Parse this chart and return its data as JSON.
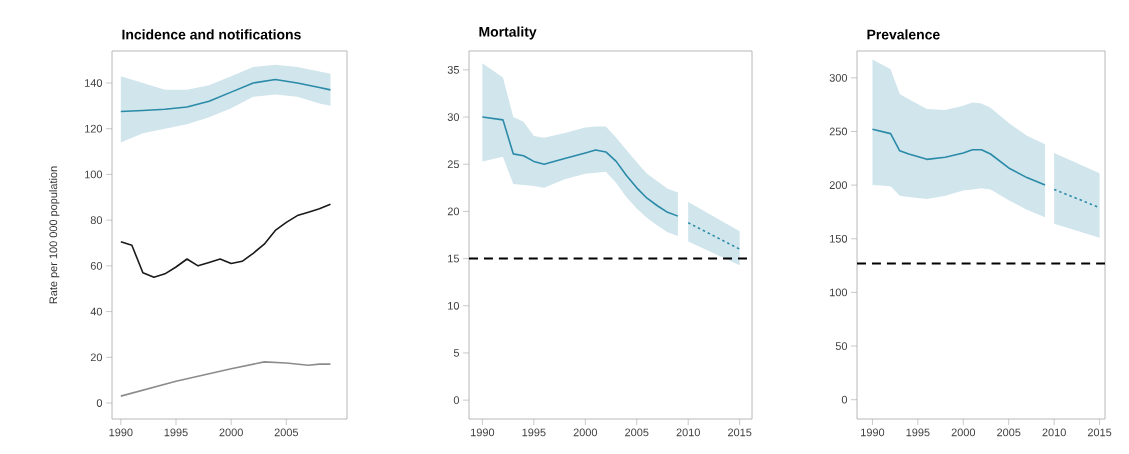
{
  "chart_data": [
    {
      "type": "line",
      "title": "Incidence and notifications",
      "ylabel": "Rate per 100 000 population",
      "xlim": [
        1989.2,
        2010.5
      ],
      "ylim": [
        -7,
        154
      ],
      "xticks": [
        1990,
        1995,
        2000,
        2005
      ],
      "yticks": [
        0,
        20,
        40,
        60,
        80,
        100,
        120,
        140
      ],
      "marker": "none",
      "series": [
        {
          "color": "#2a8aa8",
          "x": [
            1990,
            1992,
            1994,
            1996,
            1998,
            2000,
            2002,
            2004,
            2006,
            2008,
            2009
          ],
          "values": [
            127.5,
            128,
            128.5,
            129.5,
            132,
            136,
            140,
            141.5,
            140,
            138,
            137
          ],
          "lower": [
            114,
            118,
            120,
            122,
            125,
            129,
            134,
            135,
            134,
            131,
            130
          ],
          "upper": [
            143,
            140,
            137,
            137,
            139,
            143,
            147,
            148,
            147,
            145,
            144
          ]
        },
        {
          "color": "#1a1a1a",
          "x": [
            1990,
            1991,
            1992,
            1993,
            1994,
            1995,
            1996,
            1997,
            1998,
            1999,
            2000,
            2001,
            2002,
            2003,
            2004,
            2005,
            2006,
            2007,
            2008,
            2009
          ],
          "values": [
            70.5,
            69,
            57,
            55,
            56.5,
            59.5,
            63,
            60,
            61.5,
            63,
            61,
            62,
            65.5,
            69.5,
            75.5,
            79,
            82,
            83.5,
            85,
            87
          ]
        },
        {
          "color": "#8c8c8c",
          "x": [
            1990,
            1995,
            2000,
            2003,
            2005,
            2007,
            2008,
            2009
          ],
          "values": [
            3,
            9.5,
            15,
            18,
            17.5,
            16.5,
            17,
            17
          ]
        }
      ]
    },
    {
      "type": "line",
      "title": "Mortality",
      "xlim": [
        1988.7,
        2016.2
      ],
      "ylim": [
        -2,
        37
      ],
      "xticks": [
        1990,
        1995,
        2000,
        2005,
        2010,
        2015
      ],
      "yticks": [
        0,
        5,
        10,
        15,
        20,
        25,
        30,
        35
      ],
      "marker": "none",
      "series": [
        {
          "color": "#2a8aa8",
          "x": [
            1990,
            1992,
            1993,
            1994,
            1995,
            1996,
            1998,
            2000,
            2001,
            2002,
            2003,
            2004,
            2005,
            2006,
            2007,
            2008,
            2009
          ],
          "values": [
            30,
            29.7,
            26.1,
            25.9,
            25.3,
            25,
            25.6,
            26.2,
            26.5,
            26.3,
            25.3,
            23.8,
            22.5,
            21.4,
            20.6,
            19.9,
            19.5
          ],
          "lower": [
            25.3,
            25.8,
            22.9,
            22.8,
            22.7,
            22.5,
            23.4,
            24,
            24.1,
            24.2,
            23,
            21.5,
            20.3,
            19.3,
            18.5,
            17.8,
            17.4
          ],
          "upper": [
            35.7,
            34.2,
            30,
            29.5,
            28,
            27.8,
            28.3,
            28.9,
            29,
            29,
            27.8,
            26.5,
            25.2,
            24,
            23.2,
            22.4,
            22
          ]
        },
        {
          "color": "#2a8aa8",
          "line_style": "dashed",
          "x": [
            2010,
            2015
          ],
          "values": [
            18.8,
            16
          ],
          "lower": [
            16.8,
            14.3
          ],
          "upper": [
            21,
            17.9
          ]
        }
      ],
      "ref_lines": [
        {
          "axis": "y",
          "value": 15,
          "color": "#000000",
          "line_style": "dashed"
        }
      ]
    },
    {
      "type": "line",
      "title": "Prevalence",
      "xlim": [
        1988.3,
        2015.6
      ],
      "ylim": [
        -18,
        325
      ],
      "xticks": [
        1990,
        1995,
        2000,
        2005,
        2010,
        2015
      ],
      "yticks": [
        0,
        50,
        100,
        150,
        200,
        250,
        300
      ],
      "marker": "none",
      "series": [
        {
          "color": "#2a8aa8",
          "x": [
            1990,
            1992,
            1993,
            1994,
            1996,
            1998,
            2000,
            2001,
            2002,
            2003,
            2005,
            2007,
            2009
          ],
          "values": [
            252,
            248,
            232,
            229,
            224,
            226,
            230,
            233,
            233,
            229,
            216,
            207,
            200
          ],
          "lower": [
            200,
            199,
            190,
            189,
            187,
            190,
            195,
            196,
            197,
            196,
            186,
            177,
            170
          ],
          "upper": [
            317,
            308,
            285,
            280,
            271,
            270,
            274,
            277,
            276,
            272,
            258,
            246,
            238
          ]
        },
        {
          "color": "#2a8aa8",
          "line_style": "dashed",
          "x": [
            2010,
            2015
          ],
          "values": [
            196,
            179
          ],
          "lower": [
            164,
            151
          ],
          "upper": [
            230,
            211
          ]
        }
      ],
      "ref_lines": [
        {
          "axis": "y",
          "value": 127,
          "color": "#000000",
          "line_style": "dashed"
        }
      ]
    }
  ]
}
